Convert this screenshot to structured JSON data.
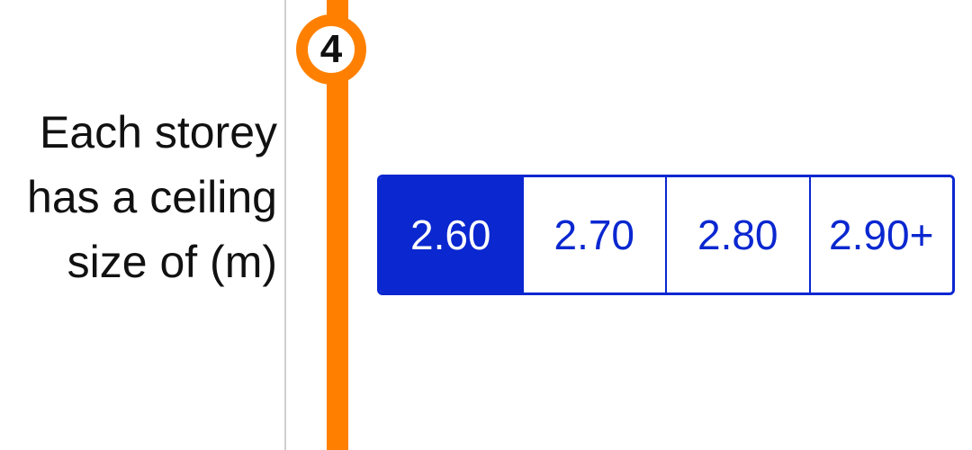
{
  "question": {
    "step_number": "4",
    "label_lines": [
      "Each storey",
      "has a ceiling",
      "size of (m)"
    ]
  },
  "ceiling_options": {
    "selected_index": 0,
    "options": [
      "2.60",
      "2.70",
      "2.80",
      "2.90+"
    ]
  },
  "colors": {
    "accent": "#ff8000",
    "selection": "#0a27d0",
    "text": "#111111",
    "divider": "#d0d0d0"
  }
}
